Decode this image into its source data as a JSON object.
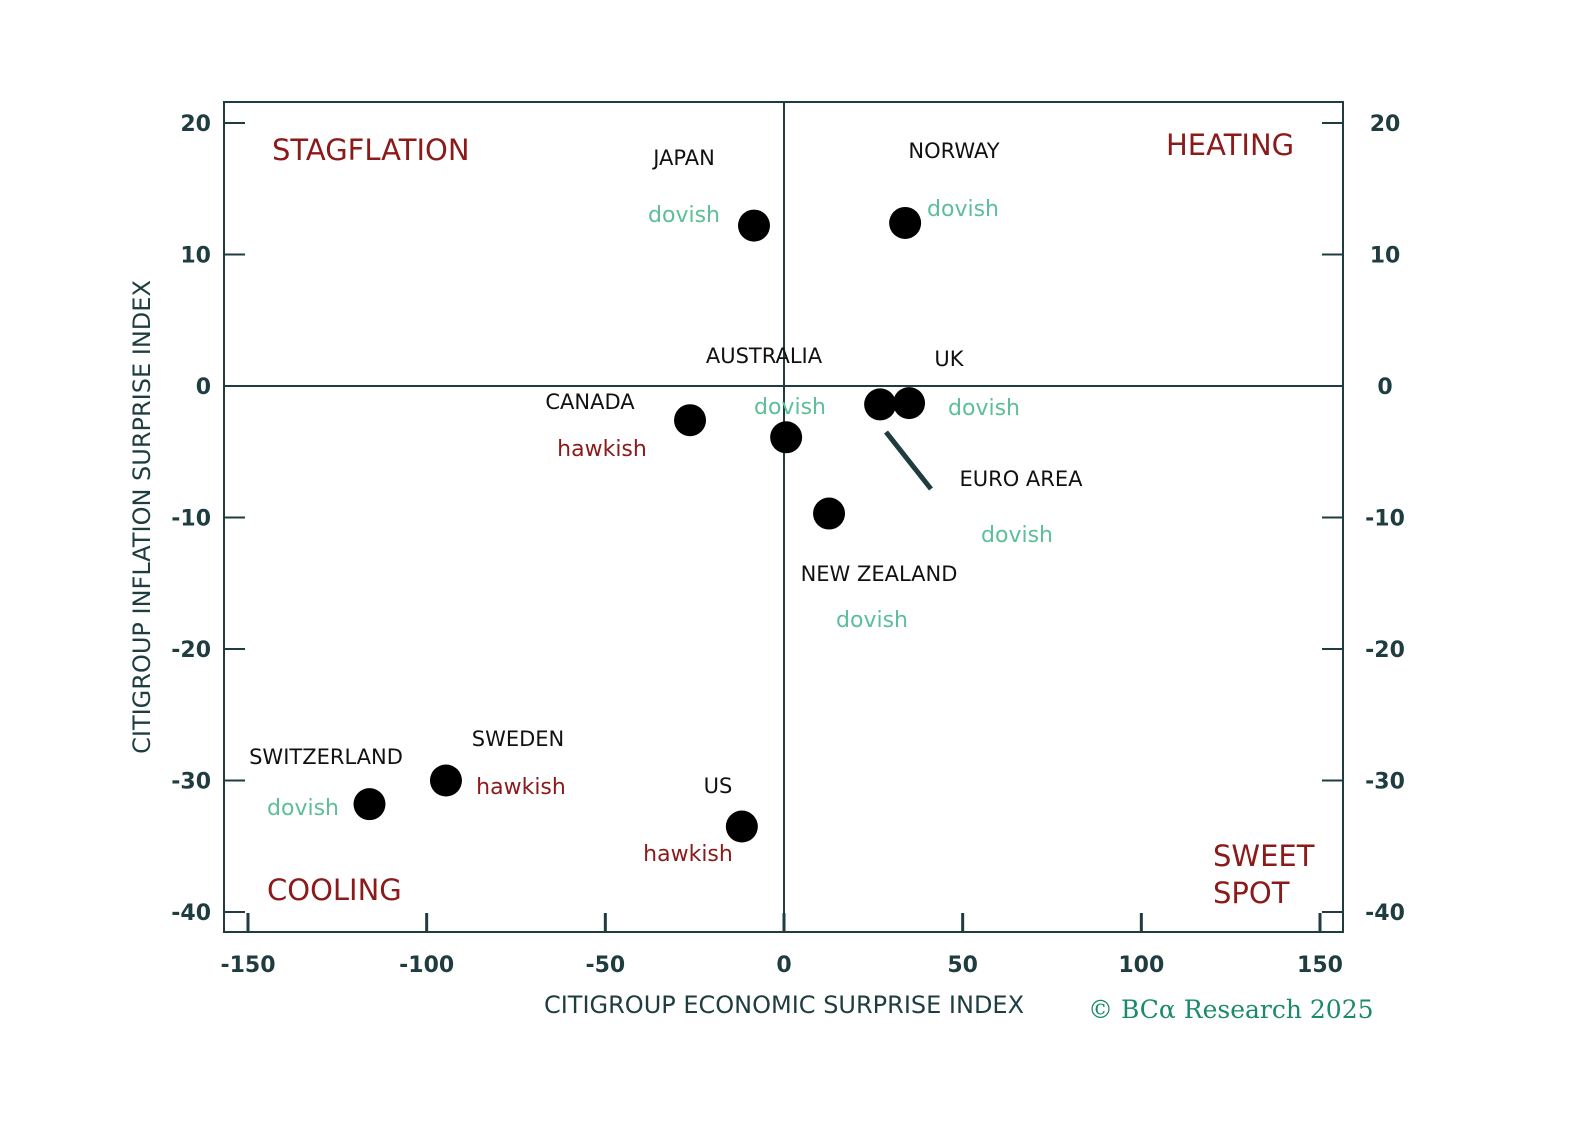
{
  "chart_data": {
    "type": "scatter",
    "xlabel": "CITIGROUP ECONOMIC SURPRISE INDEX",
    "ylabel": "CITIGROUP INFLATION SURPRISE INDEX",
    "xlim": [
      -157,
      156
    ],
    "ylim": [
      -41.5,
      21.5
    ],
    "xticks": [
      -150,
      -100,
      -50,
      0,
      50,
      100,
      150
    ],
    "yticks": [
      20,
      10,
      0,
      -10,
      -20,
      -30,
      -40
    ],
    "grid": false,
    "quadrants": {
      "top_left": "STAGFLATION",
      "top_right": "HEATING",
      "bottom_left": "COOLING",
      "bottom_right": [
        "SWEET",
        "SPOT"
      ]
    },
    "points": [
      {
        "name": "JAPAN",
        "x": -8.4,
        "y": 12.2,
        "stance": "dovish"
      },
      {
        "name": "NORWAY",
        "x": 33.9,
        "y": 12.4,
        "stance": "dovish"
      },
      {
        "name": "AUSTRALIA",
        "x": 0.6,
        "y": -3.9,
        "stance": "dovish"
      },
      {
        "name": "UK",
        "x": 35.0,
        "y": -1.3,
        "stance": "dovish"
      },
      {
        "name": "CANADA",
        "x": -26.3,
        "y": -2.6,
        "stance": "hawkish"
      },
      {
        "name": "EURO AREA",
        "x": 26.9,
        "y": -1.4,
        "stance": "dovish"
      },
      {
        "name": "NEW ZEALAND",
        "x": 12.6,
        "y": -9.7,
        "stance": "dovish"
      },
      {
        "name": "SWITZERLAND",
        "x": -116.0,
        "y": -31.8,
        "stance": "dovish"
      },
      {
        "name": "SWEDEN",
        "x": -94.6,
        "y": -30.0,
        "stance": "hawkish"
      },
      {
        "name": "US",
        "x": -11.8,
        "y": -33.5,
        "stance": "hawkish"
      }
    ],
    "colors": {
      "axis": "#1f3d40",
      "hawkish": "#8b1a1a",
      "dovish": "#5cbf9a",
      "quadrant": "#8b1a1a",
      "point": "#000000"
    }
  },
  "copyright": "© BCα Research 2025"
}
